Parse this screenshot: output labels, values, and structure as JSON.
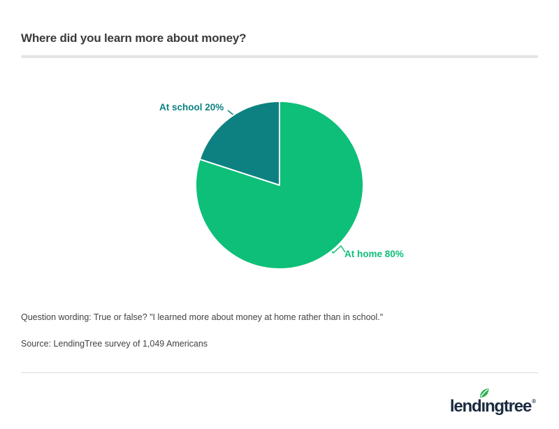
{
  "header": {
    "title": "Where did you learn more about money?"
  },
  "chart_data": {
    "type": "pie",
    "title": "Where did you learn more about money?",
    "start_angle_deg": -90,
    "direction": "clockwise",
    "legend": "none",
    "data_labels": "outside-with-connectors",
    "slices": [
      {
        "label": "At home",
        "value": 80,
        "display": "At home 80%",
        "color": "#0dbf78"
      },
      {
        "label": "At school",
        "value": 20,
        "display": "At school 20%",
        "color": "#0d8181"
      }
    ]
  },
  "footnotes": {
    "question_wording": "Question wording: True or false? \"I learned more about money at home rather than in school.\"",
    "source": "Source: LendingTree survey of 1,049 Americans"
  },
  "branding": {
    "logo_part1": "lend",
    "logo_dotless_i": "ı",
    "logo_part2": "ngtree",
    "logo_reg": "®",
    "logo_color": "#1c2b40",
    "leaf_color": "#2cb251"
  },
  "colors": {
    "background": "#ffffff",
    "title_text": "#3a3a3a",
    "footnote_text": "#424242",
    "divider_thick": "#e4e4e4",
    "divider_thin": "#dddddd",
    "slice_border": "#ffffff"
  }
}
